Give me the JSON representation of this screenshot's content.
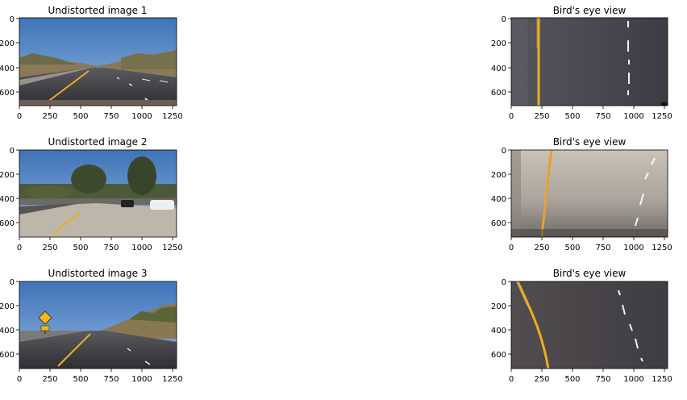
{
  "panels": [
    {
      "title": "Undistorted image 1",
      "scene": "road-sky",
      "ylabels": [
        "0",
        "200",
        "400",
        "600"
      ],
      "xlabels": [
        "0",
        "250",
        "500",
        "750",
        "1000",
        "1250"
      ]
    },
    {
      "title": "Bird's eye view",
      "scene": "birdseye-dark",
      "ylabels": [
        "0",
        "200",
        "400",
        "600"
      ],
      "xlabels": [
        "0",
        "250",
        "500",
        "750",
        "1000",
        "1250"
      ]
    },
    {
      "title": "Undistorted image 2",
      "scene": "road-trees",
      "ylabels": [
        "0",
        "200",
        "400",
        "600"
      ],
      "xlabels": [
        "0",
        "250",
        "500",
        "750",
        "1000",
        "1250"
      ]
    },
    {
      "title": "Bird's eye view",
      "scene": "birdseye-light",
      "ylabels": [
        "0",
        "200",
        "400",
        "600"
      ],
      "xlabels": [
        "0",
        "250",
        "500",
        "750",
        "1000",
        "1250"
      ]
    },
    {
      "title": "Undistorted image 3",
      "scene": "road-sign",
      "ylabels": [
        "0",
        "200",
        "400",
        "600"
      ],
      "xlabels": [
        "0",
        "250",
        "500",
        "750",
        "1000",
        "1250"
      ]
    },
    {
      "title": "Bird's eye view",
      "scene": "birdseye-curve",
      "ylabels": [
        "0",
        "200",
        "400",
        "600"
      ],
      "xlabels": [
        "0",
        "250",
        "500",
        "750",
        "1000",
        "1250"
      ]
    }
  ],
  "chart_data": {
    "type": "image-grid",
    "image_width": 1280,
    "image_height": 720,
    "xlim": [
      0,
      1280
    ],
    "ylim": [
      720,
      0
    ],
    "xticks": [
      0,
      250,
      500,
      750,
      1000,
      1250
    ],
    "yticks": [
      0,
      200,
      400,
      600
    ],
    "colors": {
      "sky": "#4a7fc0",
      "asphalt": "#4a4a52",
      "lane_yellow": "#e8b020",
      "lane_white": "#f2f2f2"
    }
  }
}
